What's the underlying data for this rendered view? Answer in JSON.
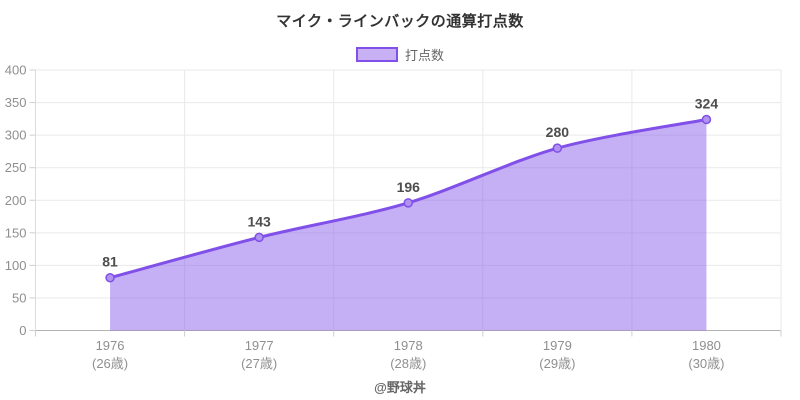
{
  "chart_data": {
    "type": "area",
    "title": "マイク・ラインバックの通算打点数",
    "legend": {
      "position": "top",
      "label": "打点数"
    },
    "x": [
      "1976",
      "1977",
      "1978",
      "1979",
      "1980"
    ],
    "x_sub": [
      "(26歳)",
      "(27歳)",
      "(28歳)",
      "(29歳)",
      "(30歳)"
    ],
    "series": [
      {
        "name": "打点数",
        "values": [
          81,
          143,
          196,
          280,
          324
        ]
      }
    ],
    "ylim": [
      0,
      400
    ],
    "ytick_step": 50,
    "yticks": [
      0,
      50,
      100,
      150,
      200,
      250,
      300,
      350,
      400
    ],
    "grid": true,
    "colors": {
      "line": "#8050e8",
      "fill": "#8050e8",
      "fill_opacity": 0.45,
      "marker_fill": "#b093f0",
      "data_label": "#4d4d4d",
      "axis_text": "#8f8f8f",
      "grid": "#e9e9e9",
      "axis_line": "#b3b3b3",
      "minor_tick": "#cfcfcf",
      "title_text": "#333333",
      "legend_text": "#666666"
    }
  },
  "footer": {
    "credit": "@野球丼"
  }
}
